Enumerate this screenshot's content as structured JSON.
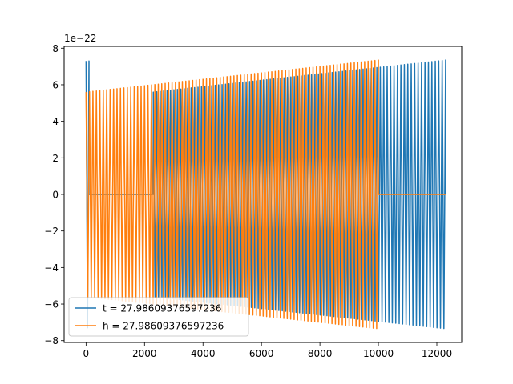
{
  "chart_data": {
    "type": "line",
    "title": "",
    "xlabel": "",
    "ylabel": "",
    "y_scale_offset_text": "1e−22",
    "xlim": [
      -750,
      12850
    ],
    "ylim": [
      -8.1,
      8.1
    ],
    "x_ticks": [
      0,
      2000,
      4000,
      6000,
      8000,
      10000,
      12000
    ],
    "x_tick_labels": [
      "0",
      "2000",
      "4000",
      "6000",
      "8000",
      "10000",
      "12000"
    ],
    "y_ticks": [
      -8,
      -6,
      -4,
      -2,
      0,
      2,
      4,
      6,
      8
    ],
    "y_tick_labels": [
      "−8",
      "−6",
      "−4",
      "−2",
      "0",
      "2",
      "4",
      "6",
      "8"
    ],
    "grid": false,
    "legend_position": "lower-left",
    "series": [
      {
        "name": "t = 27.98609376597236",
        "color": "#1f77b4",
        "description": "oscillating waveform, zero from ~100 to ~2300, then oscillating with slowly growing amplitude to ~12300",
        "segments": [
          {
            "x_start": 0,
            "x_end": 100,
            "amplitude": 7.3,
            "cycles": 1
          },
          {
            "x_start": 100,
            "x_end": 2300,
            "amplitude": 0,
            "cycles": 0
          },
          {
            "x_start": 2300,
            "x_end": 12300,
            "amplitude_start": 5.6,
            "amplitude_end": 7.35,
            "cycles": 85
          }
        ]
      },
      {
        "name": "h = 27.98609376597236",
        "color": "#ff7f0e",
        "description": "oscillating waveform from 0 to ~10000 with slowly growing amplitude, then zero to ~12300",
        "segments": [
          {
            "x_start": 0,
            "x_end": 10000,
            "amplitude_start": 5.6,
            "amplitude_end": 7.35,
            "cycles": 85
          },
          {
            "x_start": 10000,
            "x_end": 12300,
            "amplitude": 0,
            "cycles": 0
          }
        ]
      }
    ]
  }
}
